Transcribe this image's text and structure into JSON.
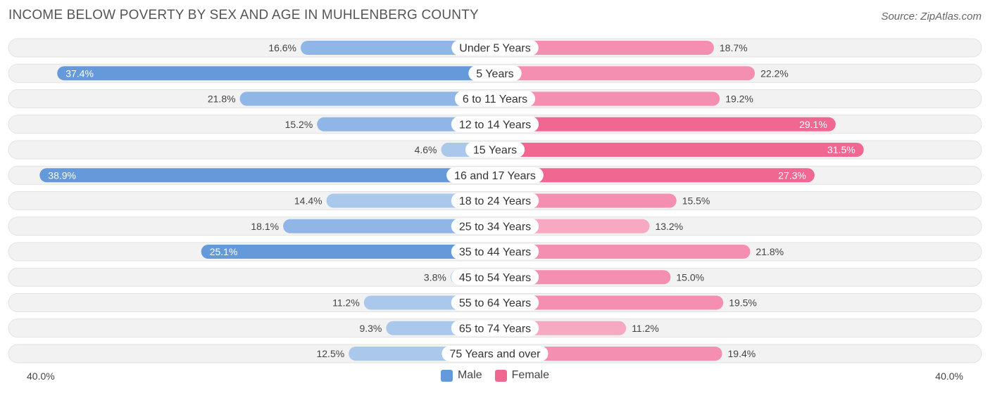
{
  "title": "INCOME BELOW POVERTY BY SEX AND AGE IN MUHLENBERG COUNTY",
  "source": "Source: ZipAtlas.com",
  "colors": {
    "male_strong": "#6499da",
    "male_light": "#a9c8ec",
    "female_strong": "#f06892",
    "female_light": "#f7a9c2",
    "track": "#f0f0f0"
  },
  "legend": {
    "male": "Male",
    "female": "Female"
  },
  "axis": {
    "left_label": "40.0%",
    "right_label": "40.0%"
  },
  "chart_data": {
    "type": "bar",
    "orientation": "horizontal-diverging",
    "categories": [
      "Under 5 Years",
      "5 Years",
      "6 to 11 Years",
      "12 to 14 Years",
      "15 Years",
      "16 and 17 Years",
      "18 to 24 Years",
      "25 to 34 Years",
      "35 to 44 Years",
      "45 to 54 Years",
      "55 to 64 Years",
      "65 to 74 Years",
      "75 Years and over"
    ],
    "series": [
      {
        "name": "Male",
        "values": [
          16.6,
          37.4,
          21.8,
          15.2,
          4.6,
          38.9,
          14.4,
          18.1,
          25.1,
          3.8,
          11.2,
          9.3,
          12.5
        ]
      },
      {
        "name": "Female",
        "values": [
          18.7,
          22.2,
          19.2,
          29.1,
          31.5,
          27.3,
          15.5,
          13.2,
          21.8,
          15.0,
          19.5,
          11.2,
          19.4
        ]
      }
    ],
    "value_labels": {
      "Male": [
        "16.6%",
        "37.4%",
        "21.8%",
        "15.2%",
        "4.6%",
        "38.9%",
        "14.4%",
        "18.1%",
        "25.1%",
        "3.8%",
        "11.2%",
        "9.3%",
        "12.5%"
      ],
      "Female": [
        "18.7%",
        "22.2%",
        "19.2%",
        "29.1%",
        "31.5%",
        "27.3%",
        "15.5%",
        "13.2%",
        "21.8%",
        "15.0%",
        "19.5%",
        "11.2%",
        "19.4%"
      ]
    },
    "xlim": [
      0,
      40
    ],
    "legend_position": "bottom-center"
  }
}
